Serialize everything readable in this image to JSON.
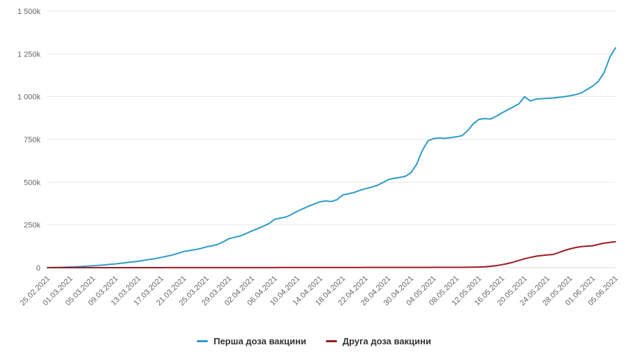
{
  "chart_data": {
    "type": "line",
    "title": "",
    "xlabel": "",
    "ylabel": "",
    "ylim": [
      0,
      1500
    ],
    "y_unit": "thousands (k)",
    "grid": true,
    "legend_position": "bottom",
    "x_label_interval_days": 4,
    "x_labels": [
      "25.02.2021",
      "01.03.2021",
      "05.03.2021",
      "09.03.2021",
      "13.03.2021",
      "17.03.2021",
      "21.03.2021",
      "25.03.2021",
      "29.03.2021",
      "02.04.2021",
      "06.04.2021",
      "10.04.2021",
      "14.04.2021",
      "18.04.2021",
      "22.04.2021",
      "26.04.2021",
      "30.04.2021",
      "04.05.2021",
      "08.05.2021",
      "12.05.2021",
      "16.05.2021",
      "20.05.2021",
      "24.05.2021",
      "28.05.2021",
      "01.06.2021",
      "05.06.2021"
    ],
    "y_ticks": [
      {
        "value": 0,
        "label": "0"
      },
      {
        "value": 250,
        "label": "250k"
      },
      {
        "value": 500,
        "label": "500k"
      },
      {
        "value": 750,
        "label": "750k"
      },
      {
        "value": 1000,
        "label": "1 000k"
      },
      {
        "value": 1250,
        "label": "1 250k"
      },
      {
        "value": 1500,
        "label": "1 500k"
      }
    ],
    "series": [
      {
        "name": "Перша доза вакцини",
        "color": "#2d9bc7",
        "values_unit": "k",
        "values": [
          0.3,
          0.8,
          1.5,
          2.5,
          4,
          5.5,
          7,
          9,
          11,
          13,
          16,
          19,
          22,
          26,
          30,
          34,
          38,
          43,
          48,
          53,
          60,
          67,
          74,
          84,
          95,
          100,
          105,
          112,
          122,
          128,
          136,
          152,
          170,
          178,
          186,
          200,
          215,
          228,
          242,
          258,
          283,
          290,
          296,
          312,
          330,
          345,
          360,
          372,
          385,
          390,
          387,
          398,
          425,
          432,
          440,
          452,
          462,
          470,
          480,
          497,
          515,
          522,
          528,
          534,
          555,
          605,
          685,
          742,
          755,
          758,
          756,
          760,
          765,
          772,
          802,
          842,
          868,
          872,
          869,
          885,
          905,
          922,
          940,
          958,
          1000,
          975,
          985,
          988,
          990,
          992,
          996,
          1000,
          1005,
          1012,
          1022,
          1042,
          1062,
          1090,
          1140,
          1230,
          1285
        ]
      },
      {
        "name": "Друга доза вакцини",
        "color": "#9e1a20",
        "values_unit": "k",
        "values": [
          0.1,
          0.1,
          0.1,
          0.1,
          0.1,
          0.1,
          0.1,
          0.1,
          0.1,
          0.1,
          0.1,
          0.1,
          0.1,
          0.1,
          0.1,
          0.1,
          0.1,
          0.1,
          0.1,
          0.1,
          0.1,
          0.3,
          0.3,
          0.3,
          0.3,
          0.3,
          0.3,
          0.3,
          0.3,
          0.3,
          0.3,
          0.3,
          0.3,
          0.3,
          0.3,
          0.3,
          0.3,
          0.3,
          0.3,
          0.3,
          0.3,
          0.8,
          0.8,
          0.8,
          0.8,
          0.8,
          0.8,
          0.8,
          0.8,
          0.8,
          0.8,
          0.8,
          0.8,
          0.8,
          0.8,
          0.8,
          1.5,
          1.5,
          1.5,
          1.5,
          1.5,
          1.5,
          1.5,
          1.5,
          1.5,
          1.5,
          1.5,
          1.5,
          2,
          2,
          2,
          2,
          2,
          2,
          2.5,
          3,
          3.5,
          5,
          8,
          12,
          17,
          24,
          32,
          42,
          52,
          60,
          67,
          71,
          74,
          77,
          88,
          100,
          110,
          118,
          123,
          126,
          128,
          136,
          143,
          148,
          152
        ]
      }
    ]
  },
  "colors": {
    "grid_line": "#e6e6e6",
    "axis_line": "#d8d8d8",
    "axis_text": "#666666",
    "legend_text": "#333333",
    "background": "#ffffff"
  }
}
